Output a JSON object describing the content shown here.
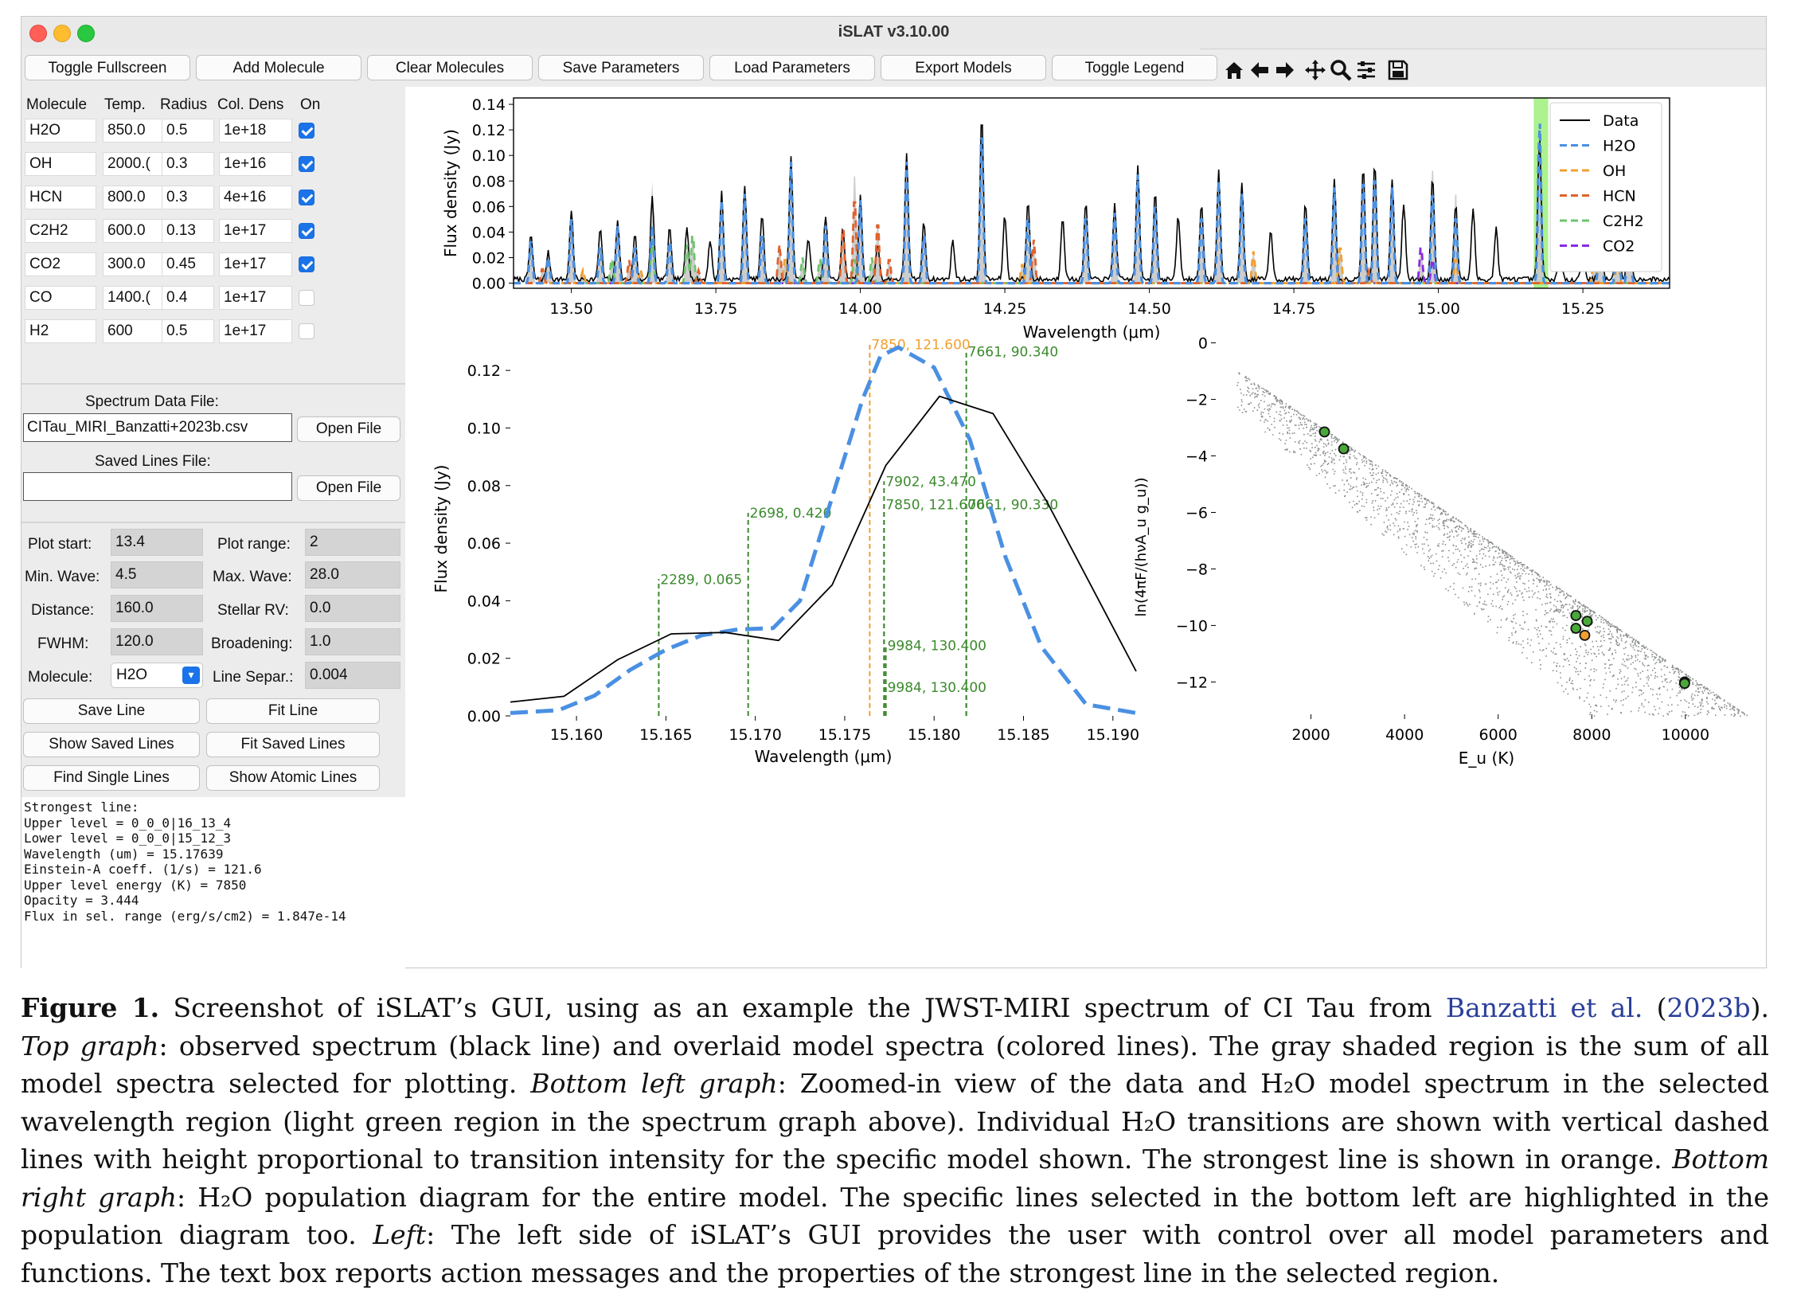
{
  "window": {
    "title": "iSLAT v3.10.00"
  },
  "toolbar": {
    "buttons": [
      "Toggle Fullscreen",
      "Add Molecule",
      "Clear Molecules",
      "Save Parameters",
      "Load Parameters",
      "Export Models",
      "Toggle Legend"
    ],
    "nav_icons": [
      "home-icon",
      "back-arrow-icon",
      "forward-arrow-icon",
      "pan-icon",
      "zoom-icon",
      "configure-icon",
      "save-icon"
    ]
  },
  "molecule_table": {
    "headers": [
      "Molecule",
      "Temp.",
      "Radius",
      "Col. Dens",
      "On"
    ],
    "rows": [
      {
        "molecule": "H2O",
        "temp": "850.0",
        "radius": "0.5",
        "col_dens": "1e+18",
        "on": true
      },
      {
        "molecule": "OH",
        "temp": "2000.(",
        "radius": "0.3",
        "col_dens": "1e+16",
        "on": true
      },
      {
        "molecule": "HCN",
        "temp": "800.0",
        "radius": "0.3",
        "col_dens": "4e+16",
        "on": true
      },
      {
        "molecule": "C2H2",
        "temp": "600.0",
        "radius": "0.13",
        "col_dens": "1e+17",
        "on": true
      },
      {
        "molecule": "CO2",
        "temp": "300.0",
        "radius": "0.45",
        "col_dens": "1e+17",
        "on": true
      },
      {
        "molecule": "CO",
        "temp": "1400.(",
        "radius": "0.4",
        "col_dens": "1e+17",
        "on": false
      },
      {
        "molecule": "H2",
        "temp": "600",
        "radius": "0.5",
        "col_dens": "1e+17",
        "on": false
      }
    ]
  },
  "files": {
    "spectrum_label": "Spectrum Data File:",
    "spectrum_value": "CITau_MIRI_Banzatti+2023b.csv",
    "open_file": "Open File",
    "saved_lines_label": "Saved Lines File:",
    "saved_lines_value": ""
  },
  "params": {
    "plot_start_label": "Plot start:",
    "plot_start": "13.4",
    "plot_range_label": "Plot range:",
    "plot_range": "2",
    "min_wave_label": "Min. Wave:",
    "min_wave": "4.5",
    "max_wave_label": "Max. Wave:",
    "max_wave": "28.0",
    "distance_label": "Distance:",
    "distance": "160.0",
    "stellar_rv_label": "Stellar RV:",
    "stellar_rv": "0.0",
    "fwhm_label": "FWHM:",
    "fwhm": "120.0",
    "broadening_label": "Broadening:",
    "broadening": "1.0",
    "molecule_label": "Molecule:",
    "molecule": "H2O",
    "line_separ_label": "Line Separ.:",
    "line_separ": "0.004"
  },
  "actions": [
    "Save Line",
    "Fit Line",
    "Show Saved Lines",
    "Fit Saved Lines",
    "Find Single Lines",
    "Show Atomic Lines"
  ],
  "info_text": [
    "Strongest line:",
    "Upper level = 0_0_0|16_13_4",
    "Lower level = 0_0_0|15_12_3",
    "Wavelength (um) = 15.17639",
    "Einstein-A coeff. (1/s) = 121.6",
    "Upper level energy (K) = 7850",
    "Opacity = 3.444",
    "Flux in sel. range (erg/s/cm2) = 1.847e-14"
  ],
  "chart_data": [
    {
      "type": "line",
      "name": "spectrum",
      "xlabel": "Wavelength (μm)",
      "ylabel": "Flux density (Jy)",
      "xlim": [
        13.4,
        15.4
      ],
      "ylim": [
        -0.004,
        0.145
      ],
      "xticks": [
        "13.50",
        "13.75",
        "14.00",
        "14.25",
        "14.50",
        "14.75",
        "15.00",
        "15.25"
      ],
      "yticks": [
        "0.00",
        "0.02",
        "0.04",
        "0.06",
        "0.08",
        "0.10",
        "0.12",
        "0.14"
      ],
      "legend": {
        "position": "top-right",
        "entries": [
          "Data",
          "H2O",
          "OH",
          "HCN",
          "C2H2",
          "CO2"
        ]
      },
      "series_colors": {
        "Data": "#000000",
        "H2O": "#4a90e2",
        "OH": "#f0a030",
        "HCN": "#e0622c",
        "C2H2": "#6ec46e",
        "CO2": "#8a2be2"
      },
      "highlight_region": [
        15.165,
        15.19
      ],
      "highlight_color": "#9ef07a",
      "peaks": {
        "data": [
          [
            13.43,
            0.035
          ],
          [
            13.46,
            0.021
          ],
          [
            13.5,
            0.055
          ],
          [
            13.55,
            0.04
          ],
          [
            13.58,
            0.048
          ],
          [
            13.61,
            0.035
          ],
          [
            13.64,
            0.065
          ],
          [
            13.67,
            0.04
          ],
          [
            13.7,
            0.042
          ],
          [
            13.74,
            0.031
          ],
          [
            13.76,
            0.068
          ],
          [
            13.8,
            0.075
          ],
          [
            13.83,
            0.052
          ],
          [
            13.88,
            0.098
          ],
          [
            13.91,
            0.032
          ],
          [
            13.94,
            0.05
          ],
          [
            13.97,
            0.04
          ],
          [
            14.0,
            0.067
          ],
          [
            14.03,
            0.028
          ],
          [
            14.08,
            0.1
          ],
          [
            14.11,
            0.045
          ],
          [
            14.16,
            0.03
          ],
          [
            14.21,
            0.128
          ],
          [
            14.25,
            0.05
          ],
          [
            14.29,
            0.062
          ],
          [
            14.35,
            0.05
          ],
          [
            14.39,
            0.06
          ],
          [
            14.44,
            0.06
          ],
          [
            14.48,
            0.09
          ],
          [
            14.51,
            0.07
          ],
          [
            14.55,
            0.05
          ],
          [
            14.59,
            0.06
          ],
          [
            14.62,
            0.085
          ],
          [
            14.66,
            0.075
          ],
          [
            14.71,
            0.04
          ],
          [
            14.77,
            0.06
          ],
          [
            14.82,
            0.08
          ],
          [
            14.87,
            0.09
          ],
          [
            14.89,
            0.09
          ],
          [
            14.92,
            0.08
          ],
          [
            14.94,
            0.06
          ],
          [
            14.99,
            0.08
          ],
          [
            15.03,
            0.06
          ],
          [
            15.06,
            0.055
          ],
          [
            15.1,
            0.04
          ],
          [
            15.175,
            0.11
          ],
          [
            15.21,
            0.025
          ],
          [
            15.25,
            0.035
          ],
          [
            15.28,
            0.065
          ],
          [
            15.31,
            0.08
          ],
          [
            15.33,
            0.075
          ]
        ],
        "H2O": [
          [
            13.43,
            0.035
          ],
          [
            13.46,
            0.02
          ],
          [
            13.5,
            0.05
          ],
          [
            13.55,
            0.03
          ],
          [
            13.58,
            0.045
          ],
          [
            13.61,
            0.03
          ],
          [
            13.64,
            0.045
          ],
          [
            13.67,
            0.035
          ],
          [
            13.76,
            0.065
          ],
          [
            13.8,
            0.07
          ],
          [
            13.83,
            0.04
          ],
          [
            13.88,
            0.095
          ],
          [
            13.94,
            0.045
          ],
          [
            14.0,
            0.065
          ],
          [
            14.08,
            0.095
          ],
          [
            14.11,
            0.04
          ],
          [
            14.21,
            0.125
          ],
          [
            14.29,
            0.055
          ],
          [
            14.39,
            0.055
          ],
          [
            14.44,
            0.055
          ],
          [
            14.48,
            0.085
          ],
          [
            14.51,
            0.065
          ],
          [
            14.59,
            0.055
          ],
          [
            14.62,
            0.08
          ],
          [
            14.66,
            0.07
          ],
          [
            14.77,
            0.055
          ],
          [
            14.82,
            0.075
          ],
          [
            14.87,
            0.085
          ],
          [
            14.89,
            0.088
          ],
          [
            14.92,
            0.075
          ],
          [
            14.99,
            0.075
          ],
          [
            15.03,
            0.055
          ],
          [
            15.175,
            0.128
          ],
          [
            15.28,
            0.06
          ],
          [
            15.31,
            0.075
          ],
          [
            15.33,
            0.07
          ]
        ],
        "OH": [
          [
            13.52,
            0.01
          ],
          [
            13.62,
            0.01
          ],
          [
            13.87,
            0.02
          ],
          [
            14.28,
            0.015
          ],
          [
            14.68,
            0.025
          ],
          [
            14.83,
            0.03
          ],
          [
            15.03,
            0.02
          ],
          [
            15.27,
            0.03
          ],
          [
            15.31,
            0.025
          ]
        ],
        "HCN": [
          [
            13.45,
            0.012
          ],
          [
            13.6,
            0.018
          ],
          [
            13.72,
            0.01
          ],
          [
            13.86,
            0.03
          ],
          [
            13.97,
            0.046
          ],
          [
            13.99,
            0.07
          ],
          [
            14.03,
            0.05
          ],
          [
            14.05,
            0.02
          ],
          [
            14.3,
            0.034
          ],
          [
            14.88,
            0.01
          ]
        ],
        "C2H2": [
          [
            13.57,
            0.02
          ],
          [
            13.64,
            0.035
          ],
          [
            13.7,
            0.03
          ],
          [
            13.71,
            0.04
          ],
          [
            13.9,
            0.02
          ],
          [
            13.93,
            0.02
          ],
          [
            13.99,
            0.02
          ],
          [
            14.02,
            0.02
          ]
        ],
        "CO2": [
          [
            14.97,
            0.03
          ],
          [
            14.99,
            0.02
          ]
        ]
      }
    },
    {
      "type": "line",
      "name": "zoom",
      "xlabel": "Wavelength (μm)",
      "ylabel": "Flux density (Jy)",
      "xlim": [
        15.1563,
        15.1913
      ],
      "ylim": [
        0.0,
        0.13
      ],
      "xticks": [
        "15.160",
        "15.165",
        "15.170",
        "15.175",
        "15.180",
        "15.185",
        "15.190"
      ],
      "yticks": [
        "0.00",
        "0.02",
        "0.04",
        "0.06",
        "0.08",
        "0.10",
        "0.12"
      ],
      "data_series": {
        "x": [
          15.1563,
          15.1593,
          15.1623,
          15.1653,
          15.1683,
          15.1713,
          15.1743,
          15.1773,
          15.1803,
          15.1833,
          15.1863,
          15.1913
        ],
        "y": [
          0.0048,
          0.0068,
          0.0195,
          0.0285,
          0.029,
          0.0262,
          0.0455,
          0.087,
          0.111,
          0.105,
          0.0745,
          0.0155
        ]
      },
      "h2o_series": {
        "x": [
          15.1563,
          15.159,
          15.161,
          15.163,
          15.165,
          15.167,
          15.169,
          15.171,
          15.1725,
          15.174,
          15.176,
          15.177,
          15.178,
          15.18,
          15.182,
          15.184,
          15.186,
          15.1885,
          15.1913
        ],
        "y": [
          0.001,
          0.002,
          0.007,
          0.016,
          0.023,
          0.028,
          0.03,
          0.0305,
          0.04,
          0.07,
          0.11,
          0.125,
          0.128,
          0.121,
          0.096,
          0.055,
          0.024,
          0.004,
          0.001
        ]
      },
      "transitions": [
        {
          "x": 15.1646,
          "height": 0.0475,
          "label": "2289, 0.065",
          "color": "#3c8a2e",
          "strongest": false
        },
        {
          "x": 15.1696,
          "height": 0.0705,
          "label": "2698, 0.420",
          "color": "#3c8a2e",
          "strongest": false
        },
        {
          "x": 15.1764,
          "height": 0.129,
          "label": "7850, 121.600",
          "color": "#f0a030",
          "strongest": true
        },
        {
          "x": 15.1772,
          "height": 0.0815,
          "label": "7902, 43.470",
          "color": "#3c8a2e",
          "strongest": false
        },
        {
          "x": 15.1772,
          "height": 0.0735,
          "label": "7850, 121.600",
          "color": "#3c8a2e",
          "strongest": false
        },
        {
          "x": 15.1818,
          "height": 0.1265,
          "label": "7661, 90.340",
          "color": "#3c8a2e",
          "strongest": false
        },
        {
          "x": 15.1818,
          "height": 0.0735,
          "label": "7661, 90.330",
          "color": "#3c8a2e",
          "strongest": false
        },
        {
          "x": 15.1773,
          "height": 0.0245,
          "label": "9984, 130.400",
          "color": "#3c8a2e",
          "strongest": false
        },
        {
          "x": 15.1773,
          "height": 0.01,
          "label": "9984, 130.400",
          "color": "#3c8a2e",
          "strongest": false
        }
      ]
    },
    {
      "type": "scatter",
      "name": "population",
      "xlabel": "E_u (K)",
      "ylabel": "ln(4πF/(hνA_u g_u))",
      "xlim": [
        0,
        11500
      ],
      "ylim": [
        -13.2,
        0.1
      ],
      "xticks": [
        "2000",
        "4000",
        "6000",
        "8000",
        "10000"
      ],
      "yticks": [
        "0",
        "−2",
        "−4",
        "−6",
        "−8",
        "−10",
        "−12"
      ],
      "cloud_color": "#8a8f8c",
      "highlighted": [
        {
          "x": 2289,
          "y": -3.15,
          "color": "#4aa83a"
        },
        {
          "x": 2698,
          "y": -3.75,
          "color": "#4aa83a"
        },
        {
          "x": 7661,
          "y": -9.65,
          "color": "#4aa83a"
        },
        {
          "x": 7661,
          "y": -10.1,
          "color": "#4aa83a"
        },
        {
          "x": 7850,
          "y": -10.35,
          "color": "#f0a030"
        },
        {
          "x": 7902,
          "y": -9.85,
          "color": "#4aa83a"
        },
        {
          "x": 9984,
          "y": -12.0,
          "color": "#4aa83a"
        },
        {
          "x": 9984,
          "y": -12.05,
          "color": "#4aa83a"
        }
      ]
    }
  ],
  "caption": {
    "lines": [
      [
        {
          "t": "Figure 1.",
          "s": "b"
        },
        {
          "t": " Screenshot of iSLAT’s GUI, using as an example the JWST-MIRI spectrum of CI Tau from "
        },
        {
          "t": "Banzatti et al.",
          "s": "blue"
        },
        {
          "t": " ("
        },
        {
          "t": "2023b",
          "s": "blue"
        },
        {
          "t": ")."
        }
      ],
      [
        {
          "t": "Top graph",
          "s": "i"
        },
        {
          "t": ": observed spectrum (black line) and overlaid model spectra (colored lines). The gray shaded region is the sum of all"
        }
      ],
      [
        {
          "t": "model spectra selected for plotting. "
        },
        {
          "t": "Bottom left graph",
          "s": "i"
        },
        {
          "t": ": Zoomed-in view of the data and H₂O model spectrum in the selected"
        }
      ],
      [
        {
          "t": "wavelength region (light green region in the spectrum graph above). Individual H₂O transitions are shown with vertical dashed"
        }
      ],
      [
        {
          "t": "lines with height proportional to transition intensity for the specific model shown. The strongest line is shown in orange. "
        },
        {
          "t": "Bottom",
          "s": "i"
        }
      ],
      [
        {
          "t": "right graph",
          "s": "i"
        },
        {
          "t": ": H₂O population diagram for the entire model. The specific lines selected in the bottom left are highlighted in the"
        }
      ],
      [
        {
          "t": "population diagram too. "
        },
        {
          "t": "Left",
          "s": "i"
        },
        {
          "t": ": The left side of iSLAT’s GUI provides the user with control over all model parameters and"
        }
      ],
      [
        {
          "t": "functions. The text box reports action messages and the properties of the strongest line in the selected region."
        }
      ]
    ]
  }
}
